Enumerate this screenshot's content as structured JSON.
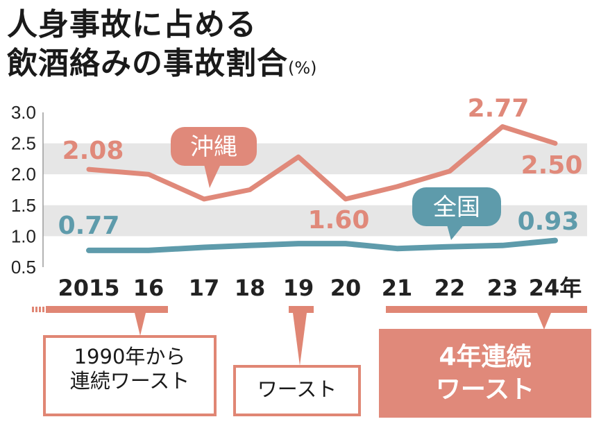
{
  "title_line1": "人身事故に占める",
  "title_line2": "飲酒絡みの事故割合",
  "unit": "(%)",
  "colors": {
    "okinawa": "#e0897a",
    "national": "#5e9bab",
    "grid_band": "#e6e6e6",
    "note_border": "#e08674"
  },
  "chart_data": {
    "type": "line",
    "title": "人身事故に占める飲酒絡みの事故割合",
    "ylabel": "(%)",
    "ylim": [
      0.5,
      3.0
    ],
    "y_ticks": [
      "3.0",
      "2.5",
      "2.0",
      "1.5",
      "1.0",
      "0.5"
    ],
    "categories": [
      "2015",
      "16",
      "17",
      "18",
      "19",
      "20",
      "21",
      "22",
      "23",
      "24年"
    ],
    "series": [
      {
        "name": "沖縄",
        "values": [
          2.08,
          2.0,
          1.6,
          1.75,
          2.28,
          1.6,
          1.8,
          2.05,
          2.77,
          2.5
        ]
      },
      {
        "name": "全国",
        "values": [
          0.77,
          0.77,
          0.82,
          0.85,
          0.88,
          0.88,
          0.8,
          0.83,
          0.85,
          0.93
        ]
      }
    ],
    "data_labels": [
      {
        "series": 0,
        "index": 0,
        "text": "2.08"
      },
      {
        "series": 0,
        "index": 5,
        "text": "1.60"
      },
      {
        "series": 0,
        "index": 8,
        "text": "2.77"
      },
      {
        "series": 0,
        "index": 9,
        "text": "2.50"
      },
      {
        "series": 1,
        "index": 0,
        "text": "0.77"
      },
      {
        "series": 1,
        "index": 9,
        "text": "0.93"
      }
    ],
    "grid": "horizontal bands",
    "legend": "callout labels on lines"
  },
  "notes": {
    "since_1990": "1990年から\n連続ワースト",
    "worst_19": "ワースト",
    "four_years": "4年連続\nワースト"
  }
}
